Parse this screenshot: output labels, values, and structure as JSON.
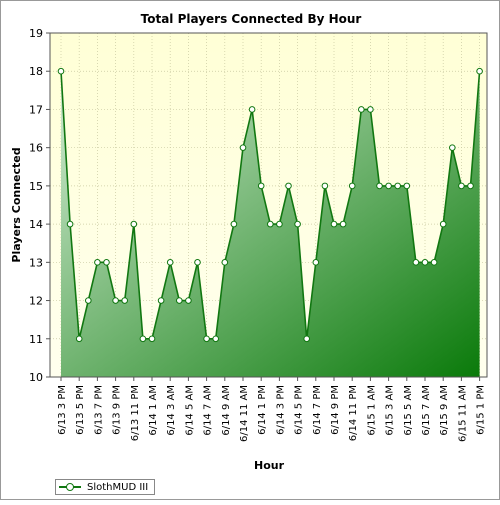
{
  "chart_data": {
    "type": "area",
    "title": "Total Players Connected By Hour",
    "xlabel": "Hour",
    "ylabel": "Players Connected",
    "ylim": [
      10,
      19
    ],
    "y_ticks": [
      10,
      11,
      12,
      13,
      14,
      15,
      16,
      17,
      18,
      19
    ],
    "x_tick_labels": [
      "6/13 3 PM",
      "6/13 5 PM",
      "6/13 7 PM",
      "6/13 9 PM",
      "6/13 11 PM",
      "6/14 1 AM",
      "6/14 3 AM",
      "6/14 5 AM",
      "6/14 7 AM",
      "6/14 9 AM",
      "6/14 11 AM",
      "6/14 1 PM",
      "6/14 3 PM",
      "6/14 5 PM",
      "6/14 7 PM",
      "6/14 9 PM",
      "6/14 11 PM",
      "6/15 1 AM",
      "6/15 3 AM",
      "6/15 5 AM",
      "6/15 7 AM",
      "6/15 9 AM",
      "6/15 11 AM",
      "6/15 1 PM"
    ],
    "grid": true,
    "legend_position": "bottom-left",
    "series": [
      {
        "name": "SlothMUD III",
        "color": "#117711",
        "values": [
          18,
          14,
          11,
          12,
          13,
          13,
          12,
          12,
          14,
          11,
          11,
          12,
          13,
          12,
          12,
          13,
          11,
          11,
          13,
          14,
          16,
          17,
          15,
          14,
          14,
          15,
          14,
          11,
          13,
          15,
          14,
          14,
          15,
          17,
          17,
          15,
          15,
          15,
          15,
          13,
          13,
          13,
          14,
          16,
          15,
          15,
          18
        ]
      }
    ]
  },
  "colors": {
    "plot_bg_top": "#ffffd6",
    "plot_bg_bottom": "#ffffee",
    "grid": "#c8c8a0",
    "area_light": "#d4ecd4",
    "area_dark": "#0a7a0a",
    "line": "#117711"
  }
}
